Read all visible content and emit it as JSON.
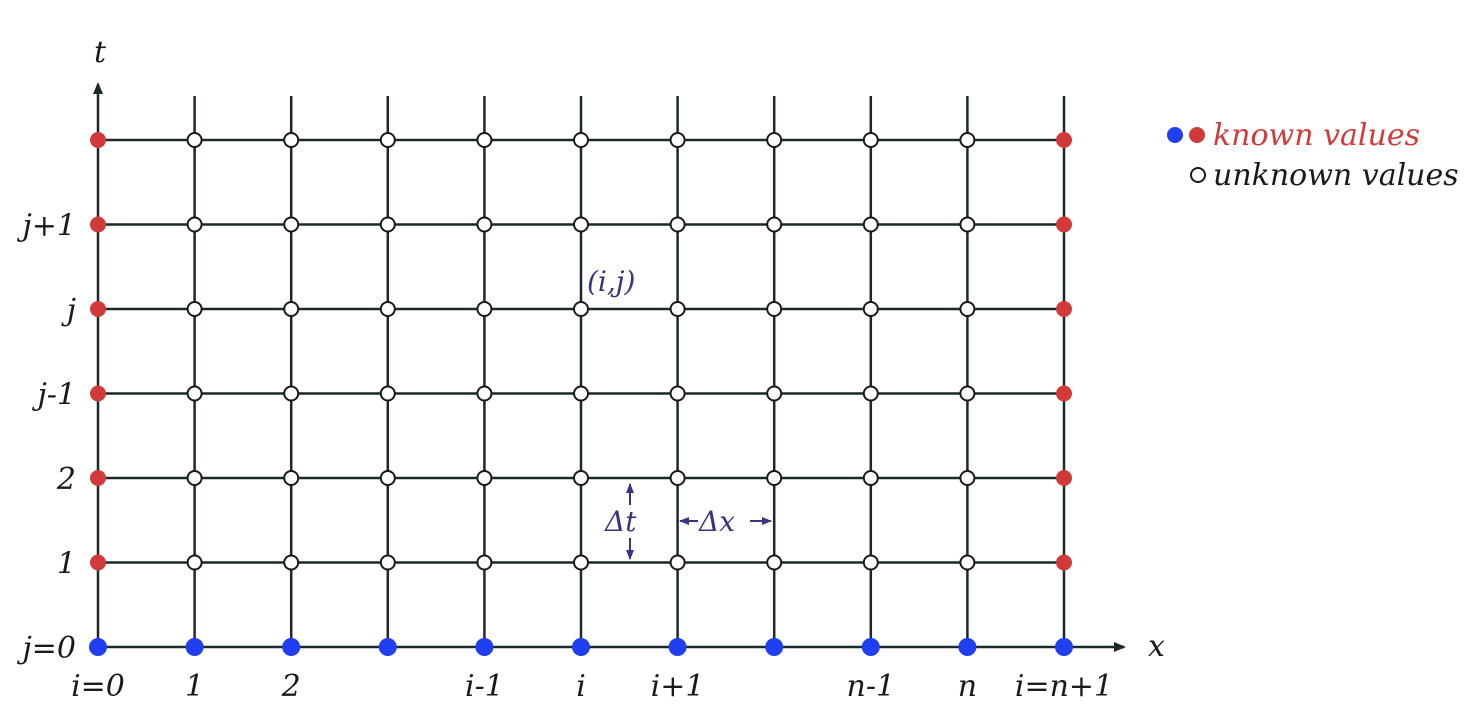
{
  "axes": {
    "x_label": "x",
    "t_label": "t"
  },
  "x_ticks": [
    {
      "col": 0,
      "label": "i=0"
    },
    {
      "col": 1,
      "label": "1"
    },
    {
      "col": 2,
      "label": "2"
    },
    {
      "col": 4,
      "label": "i-1"
    },
    {
      "col": 5,
      "label": "i"
    },
    {
      "col": 6,
      "label": "i+1"
    },
    {
      "col": 8,
      "label": "n-1"
    },
    {
      "col": 9,
      "label": "n"
    },
    {
      "col": 10,
      "label": "i=n+1"
    }
  ],
  "t_ticks": [
    {
      "row": 0,
      "label": "j=0"
    },
    {
      "row": 1,
      "label": "1"
    },
    {
      "row": 2,
      "label": "2"
    },
    {
      "row": 3,
      "label": "j-1"
    },
    {
      "row": 4,
      "label": "j"
    },
    {
      "row": 5,
      "label": "j+1"
    }
  ],
  "grid": {
    "columns": 11,
    "rows": 7
  },
  "annotations": {
    "node": "(i,j)",
    "dt": "Δt",
    "dx": "Δx"
  },
  "legend": {
    "known": "known values",
    "unknown": "unknown values"
  },
  "colors": {
    "line": "#1a2a2a",
    "boundary_red": "#d23a3a",
    "initial_blue": "#1f3ff0",
    "annotation": "#3a3480",
    "known_text": "#d23a3a",
    "unknown_text": "#1a1a1a"
  }
}
